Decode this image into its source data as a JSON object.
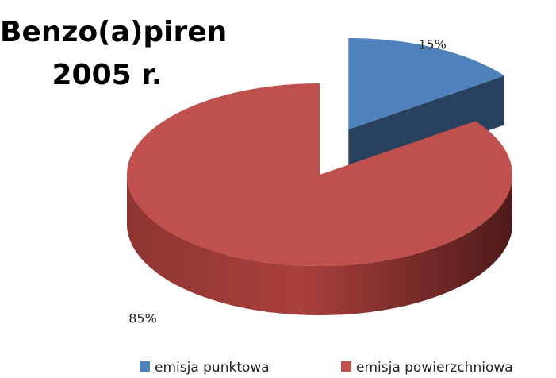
{
  "chart_data": {
    "type": "pie",
    "title": "Benzo(a)piren 2005 r.",
    "categories": [
      "emisja punktowa",
      "emisja powierzchniowa"
    ],
    "values": [
      15,
      85
    ],
    "value_labels": [
      "15%",
      "85%"
    ],
    "colors": [
      "#4f81bd",
      "#c0504d"
    ],
    "legend": "bottom"
  }
}
